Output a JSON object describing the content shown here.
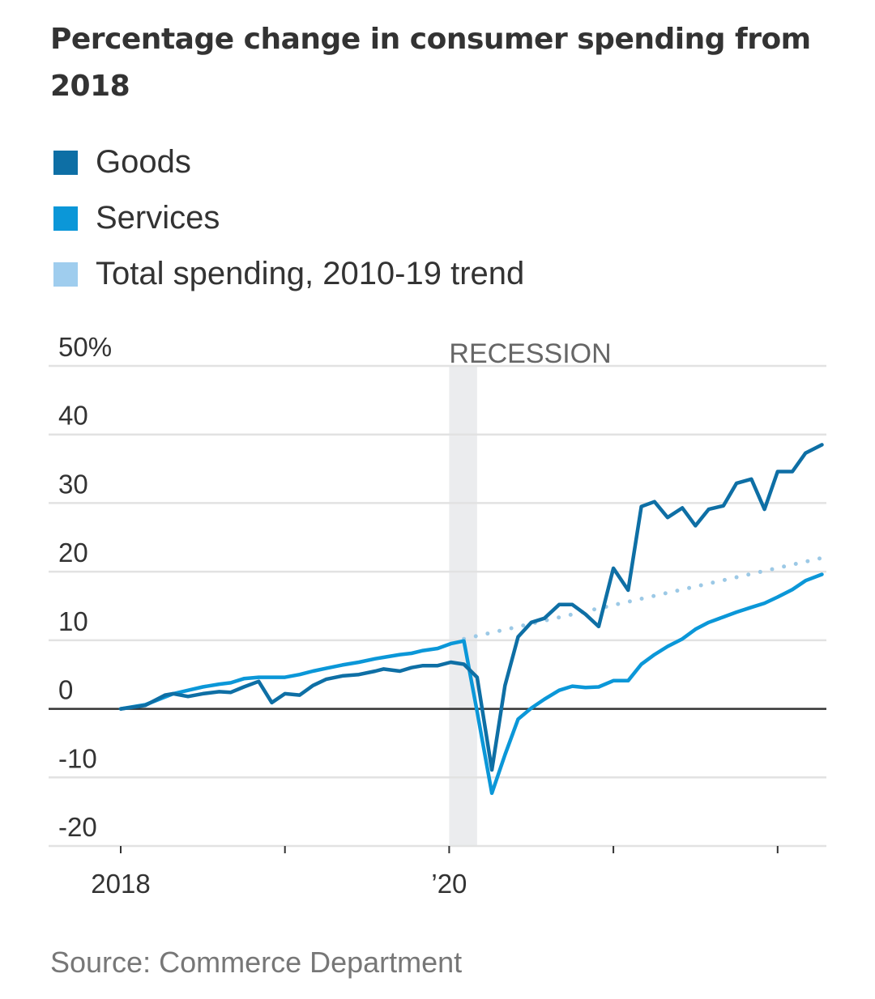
{
  "title": "Percentage change in consumer spending from 2018",
  "source": "Source: Commerce Department",
  "legend": [
    {
      "label": "Goods",
      "color": "#0e6fa5"
    },
    {
      "label": "Services",
      "color": "#0b97d8"
    },
    {
      "label": "Total spending, 2010-19 trend",
      "color": "#9fcdee"
    }
  ],
  "chart_data": {
    "type": "line",
    "title": "Percentage change in consumer spending from 2018",
    "xlabel": "",
    "ylabel": "",
    "ylim": [
      -20,
      50
    ],
    "xlim": [
      2018.0,
      2022.3
    ],
    "yticks": [
      50,
      40,
      30,
      20,
      10,
      0,
      -10,
      -20
    ],
    "ytick_labels": [
      "50%",
      "40",
      "30",
      "20",
      "10",
      "0",
      "-10",
      "-20"
    ],
    "xticks": [
      2018,
      2019,
      2020,
      2021,
      2022
    ],
    "xtick_labels": [
      "2018",
      "",
      "’20",
      "",
      ""
    ],
    "grid": true,
    "annotation": {
      "label": "RECESSION",
      "x_start": 2020.0,
      "x_end": 2020.17
    },
    "series": [
      {
        "name": "Goods",
        "color": "#0e6fa5",
        "style": "solid",
        "x": [
          2018.0,
          2018.15,
          2018.27,
          2018.32,
          2018.41,
          2018.5,
          2018.6,
          2018.67,
          2018.75,
          2018.84,
          2018.92,
          2019.0,
          2019.09,
          2019.17,
          2019.25,
          2019.35,
          2019.45,
          2019.55,
          2019.6,
          2019.7,
          2019.77,
          2019.84,
          2019.93,
          2020.01,
          2020.09,
          2020.17,
          2020.26,
          2020.34,
          2020.42,
          2020.5,
          2020.58,
          2020.67,
          2020.75,
          2020.83,
          2020.91,
          2021.0,
          2021.09,
          2021.17,
          2021.25,
          2021.33,
          2021.42,
          2021.5,
          2021.58,
          2021.67,
          2021.75,
          2021.84,
          2021.92,
          2022.0,
          2022.09,
          2022.17,
          2022.27
        ],
        "values": [
          0.0,
          0.5,
          2.0,
          2.2,
          1.8,
          2.2,
          2.5,
          2.4,
          3.2,
          4.0,
          0.9,
          2.2,
          2.0,
          3.4,
          4.3,
          4.8,
          5.0,
          5.5,
          5.8,
          5.5,
          6.0,
          6.3,
          6.3,
          6.8,
          6.5,
          4.6,
          -8.9,
          3.4,
          10.5,
          12.6,
          13.2,
          15.2,
          15.2,
          13.8,
          12.0,
          20.5,
          17.3,
          29.5,
          30.2,
          27.9,
          29.3,
          26.7,
          29.1,
          29.6,
          32.9,
          33.5,
          29.1,
          34.6,
          34.6,
          37.3,
          38.5
        ]
      },
      {
        "name": "Services",
        "color": "#0b97d8",
        "style": "solid",
        "x": [
          2018.0,
          2018.15,
          2018.32,
          2018.41,
          2018.5,
          2018.6,
          2018.67,
          2018.75,
          2018.84,
          2018.92,
          2019.0,
          2019.09,
          2019.17,
          2019.25,
          2019.35,
          2019.45,
          2019.55,
          2019.6,
          2019.7,
          2019.77,
          2019.84,
          2019.93,
          2020.01,
          2020.09,
          2020.17,
          2020.26,
          2020.34,
          2020.42,
          2020.5,
          2020.58,
          2020.67,
          2020.75,
          2020.83,
          2020.91,
          2021.0,
          2021.09,
          2021.17,
          2021.25,
          2021.33,
          2021.42,
          2021.5,
          2021.58,
          2021.67,
          2021.75,
          2021.84,
          2021.92,
          2022.0,
          2022.09,
          2022.17,
          2022.27
        ],
        "values": [
          0.0,
          0.6,
          2.2,
          2.7,
          3.2,
          3.6,
          3.8,
          4.4,
          4.6,
          4.6,
          4.6,
          5.0,
          5.5,
          5.9,
          6.4,
          6.8,
          7.3,
          7.5,
          7.9,
          8.1,
          8.5,
          8.8,
          9.5,
          9.9,
          -0.4,
          -12.3,
          -6.7,
          -1.5,
          0.1,
          1.4,
          2.7,
          3.3,
          3.1,
          3.2,
          4.1,
          4.1,
          6.5,
          7.9,
          9.1,
          10.2,
          11.6,
          12.6,
          13.4,
          14.1,
          14.8,
          15.4,
          16.3,
          17.4,
          18.7,
          19.6
        ]
      },
      {
        "name": "Total spending, 2010-19 trend",
        "color": "#9fcdee",
        "style": "dotted",
        "x": [
          2020.09,
          2022.27
        ],
        "values": [
          10.2,
          22.0
        ]
      }
    ]
  }
}
